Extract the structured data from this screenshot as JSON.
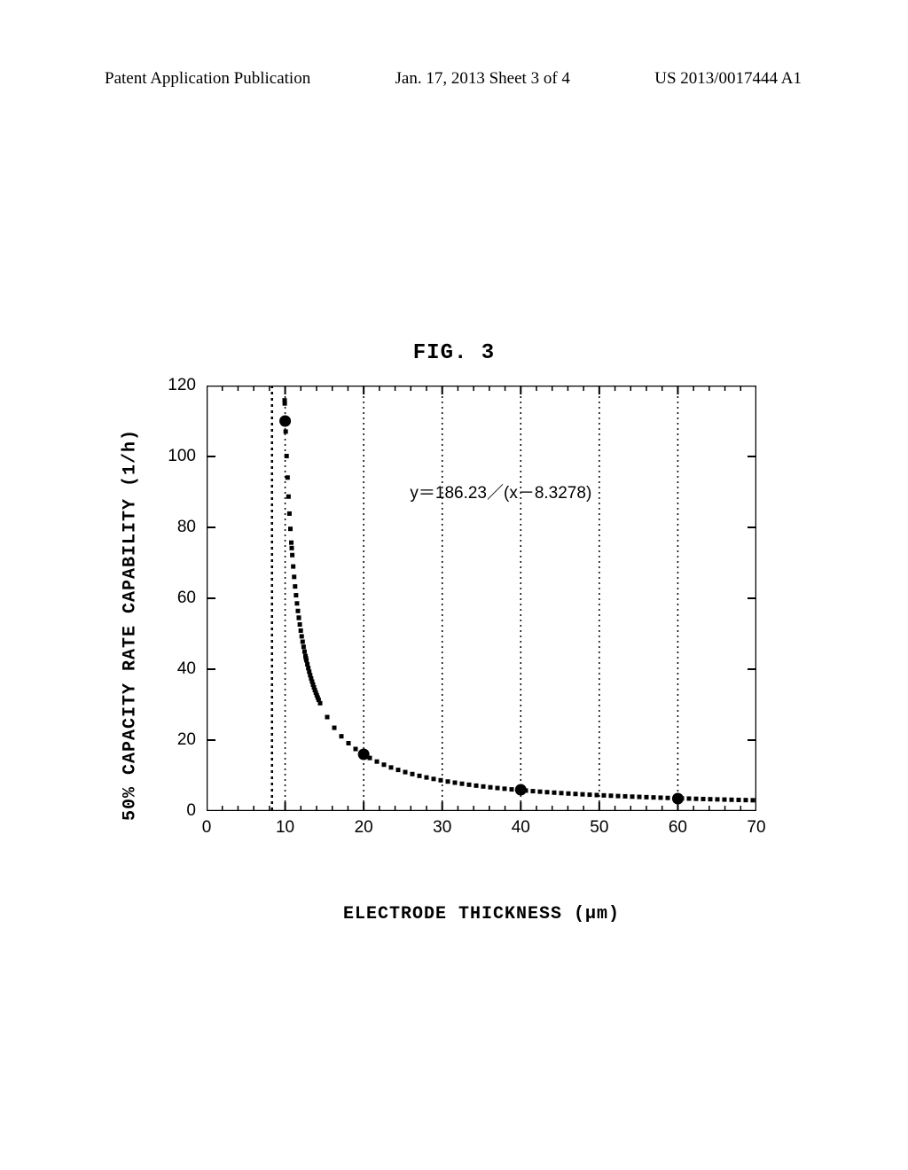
{
  "header": {
    "left": "Patent Application Publication",
    "mid": "Jan. 17, 2013  Sheet 3 of 4",
    "right": "US 2013/0017444 A1"
  },
  "figure": {
    "title": "FIG. 3",
    "equation": "y＝186.23／(x－8.3278)",
    "equation_pos": {
      "left_pct": 37,
      "top_pct": 22
    }
  },
  "chart": {
    "type": "line",
    "xlabel": "ELECTRODE THICKNESS (µm)",
    "ylabel": "50% CAPACITY RATE CAPABILITY (1/h)",
    "xlim": [
      0,
      70
    ],
    "ylim": [
      0,
      120
    ],
    "xticks": [
      0,
      10,
      20,
      30,
      40,
      50,
      60,
      70
    ],
    "yticks": [
      0,
      20,
      40,
      60,
      80,
      100,
      120
    ],
    "xtick_labels": [
      "0",
      "10",
      "20",
      "30",
      "40",
      "50",
      "60",
      "70"
    ],
    "ytick_labels": [
      "0",
      "20",
      "40",
      "60",
      "80",
      "100",
      "120"
    ],
    "minor_xticks": 5,
    "minor_yticks": 0,
    "grid_x": [
      10,
      20,
      30,
      40,
      50,
      60
    ],
    "vertical_asymptote": 8.3278,
    "curve_params": {
      "a": 186.23,
      "b": 8.3278
    },
    "data_points": [
      {
        "x": 10,
        "y": 110
      },
      {
        "x": 20,
        "y": 16
      },
      {
        "x": 40,
        "y": 6
      },
      {
        "x": 60,
        "y": 3.5
      }
    ],
    "colors": {
      "background": "#ffffff",
      "axis": "#000000",
      "grid": "#000000",
      "curve": "#000000",
      "asymptote": "#000000",
      "marker_fill": "#000000",
      "text": "#000000"
    },
    "styles": {
      "axis_width": 2.5,
      "tick_width": 2,
      "grid_dash": "2 4",
      "asymptote_dash": "3 4",
      "curve_dot_radius": 2.5,
      "curve_dot_gap": 8,
      "marker_radius": 6.5,
      "label_fontsize": 20,
      "tick_fontsize": 19
    }
  }
}
